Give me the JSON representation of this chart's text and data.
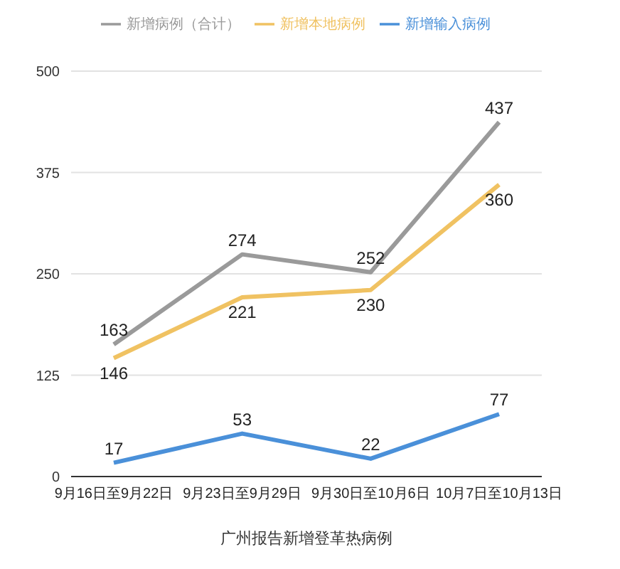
{
  "chart_data": {
    "type": "line",
    "xlabel": "广州报告新增登革热病例",
    "categories": [
      "9月16日至9月22日",
      "9月23日至9月29日",
      "9月30日至10月6日",
      "10月7日至10月13日"
    ],
    "series": [
      {
        "name": "新增病例（合计）",
        "color": "#9a9a9a",
        "values": [
          163,
          274,
          252,
          437
        ]
      },
      {
        "name": "新增本地病例",
        "color": "#f0c262",
        "values": [
          146,
          221,
          230,
          360
        ]
      },
      {
        "name": "新增输入病例",
        "color": "#4a90d9",
        "values": [
          17,
          53,
          22,
          77
        ]
      }
    ],
    "ylim": [
      0,
      500
    ],
    "yticks": [
      0,
      125,
      250,
      375,
      500
    ],
    "grid": "y",
    "legend": "top",
    "marker": "none",
    "line_style": "solid",
    "data_labels": true
  }
}
